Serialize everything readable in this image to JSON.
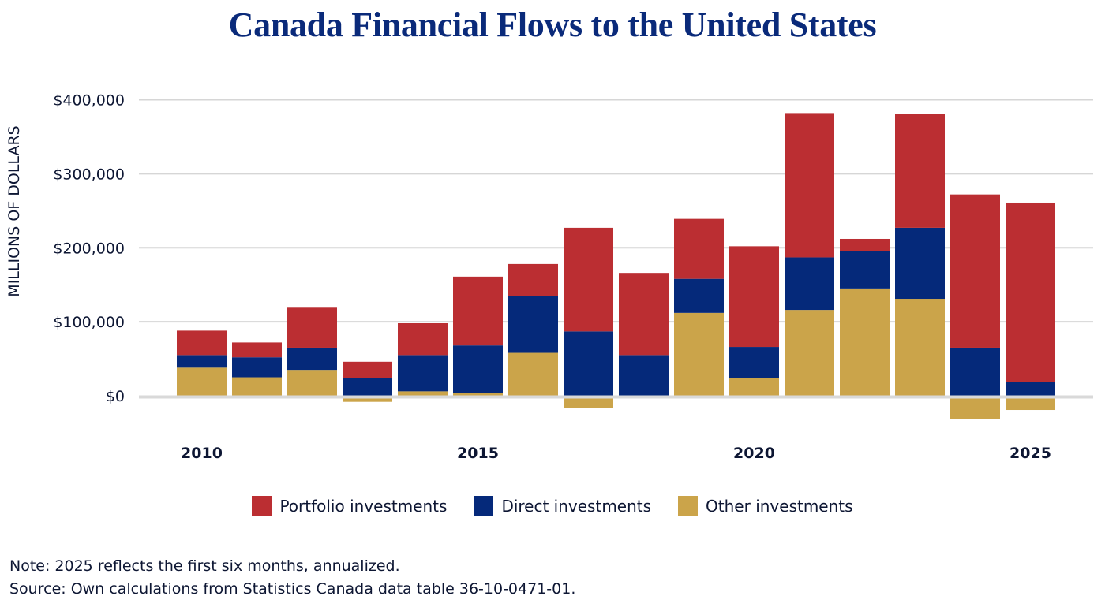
{
  "chart_data": {
    "type": "bar",
    "stacked": true,
    "title": "Canada Financial Flows to the United States",
    "xlabel": "",
    "ylabel": "MILLIONS OF DOLLARS",
    "ylim": [
      -40000,
      400000
    ],
    "yticks": [
      0,
      100000,
      200000,
      300000,
      400000
    ],
    "ytick_labels": [
      "$0",
      "$100,000",
      "$200,000",
      "$300,000",
      "$400,000"
    ],
    "categories": [
      2010,
      2011,
      2012,
      2013,
      2014,
      2015,
      2016,
      2017,
      2018,
      2019,
      2020,
      2021,
      2022,
      2023,
      2024,
      2025
    ],
    "xtick_labels": [
      {
        "year": 2010,
        "label": "2010"
      },
      {
        "year": 2015,
        "label": "2015"
      },
      {
        "year": 2020,
        "label": "2020"
      },
      {
        "year": 2025,
        "label": "2025"
      }
    ],
    "grid": true,
    "legend_position": "bottom-center",
    "series": [
      {
        "name": "Other investments",
        "color": "#cba44a",
        "values": [
          38000,
          25000,
          35000,
          -5000,
          6000,
          4000,
          58000,
          -13000,
          0,
          112000,
          24000,
          116000,
          145000,
          131000,
          -28000,
          -16000
        ]
      },
      {
        "name": "Direct investments",
        "color": "#05297a",
        "values": [
          17000,
          27000,
          30000,
          24000,
          49000,
          64000,
          77000,
          87000,
          55000,
          46000,
          42000,
          71000,
          50000,
          96000,
          65000,
          19000
        ]
      },
      {
        "name": "Portfolio investments",
        "color": "#bb2e32",
        "values": [
          33000,
          20000,
          54000,
          22000,
          43000,
          93000,
          43000,
          140000,
          111000,
          81000,
          136000,
          195000,
          17000,
          154000,
          207000,
          242000
        ]
      }
    ]
  },
  "legend": {
    "items": [
      {
        "label": "Portfolio investments",
        "color": "#bb2e32"
      },
      {
        "label": "Direct investments",
        "color": "#05297a"
      },
      {
        "label": "Other investments",
        "color": "#cba44a"
      }
    ]
  },
  "notes": {
    "note": "Note: 2025 reflects the first six months, annualized.",
    "source": "Source: Own calculations from Statistics Canada data table 36-10-0471-01."
  }
}
